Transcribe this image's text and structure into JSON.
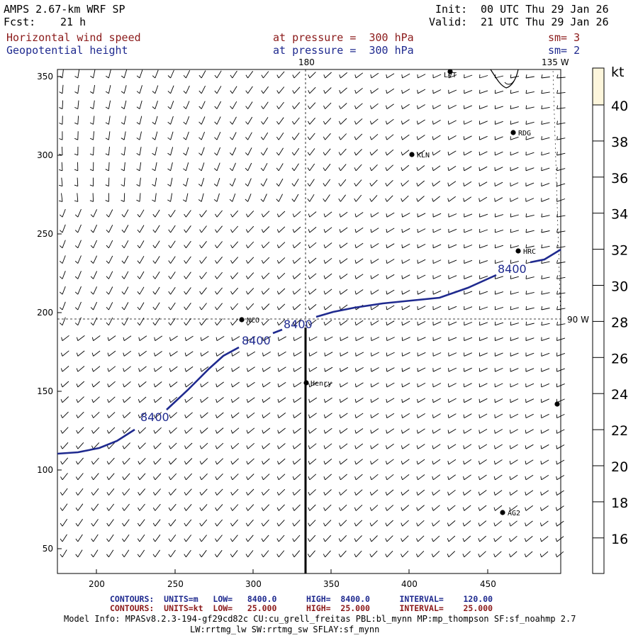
{
  "header": {
    "title": "AMPS 2.67-km WRF SP",
    "fcst_label": "Fcst:",
    "fcst_value": "21 h",
    "init_label": "Init:",
    "init_value": "00 UTC Thu 29 Jan 26",
    "valid_label": "Valid:",
    "valid_value": "21 UTC Thu 29 Jan 26",
    "field1": {
      "name": "Horizontal wind speed",
      "level": "at pressure =  300 hPa",
      "sm": "sm= 3",
      "color": "#8b1a1a"
    },
    "field2": {
      "name": "Geopotential height",
      "level": "at pressure =  300 hPa",
      "sm": "sm= 2",
      "color": "#1f2a8f"
    }
  },
  "map": {
    "x_ticks": [
      "200",
      "250",
      "300",
      "350",
      "400",
      "450"
    ],
    "y_ticks": [
      "50",
      "100",
      "150",
      "200",
      "250",
      "300",
      "350"
    ],
    "meridian_labels": [
      {
        "text": "180",
        "name": "meridian-180-label"
      },
      {
        "text": "135 W",
        "name": "meridian-135w-label"
      },
      {
        "text": "90 W",
        "name": "meridian-90w-label"
      }
    ],
    "stations": [
      "LVT",
      "RDG",
      "KLN",
      "HRC",
      "NCO",
      "Henry",
      "AG2"
    ],
    "contour_labels": [
      "8400",
      "8400",
      "8400",
      "8400"
    ]
  },
  "colorbar": {
    "unit": "kt",
    "labels": [
      "40",
      "38",
      "36",
      "34",
      "32",
      "30",
      "28",
      "26",
      "24",
      "22",
      "20",
      "18",
      "16"
    ],
    "top_color": "#fdf6dc"
  },
  "footer": {
    "contours1": "CONTOURS:  UNITS=m   LOW=   8400.0      HIGH=  8400.0      INTERVAL=    120.00",
    "contours2": "CONTOURS:  UNITS=kt  LOW=   25.000      HIGH=  25.000      INTERVAL=    25.000",
    "info1": "Model Info: MPASv8.2.3-194-gf29cd82c CU:cu_grell_freitas PBL:bl_mynn MP:mp_thompson SF:sf_noahmp 2.7",
    "info2": "LW:rrtmg_lw SW:rrtmg_sw SFLAY:sf_mynn"
  }
}
